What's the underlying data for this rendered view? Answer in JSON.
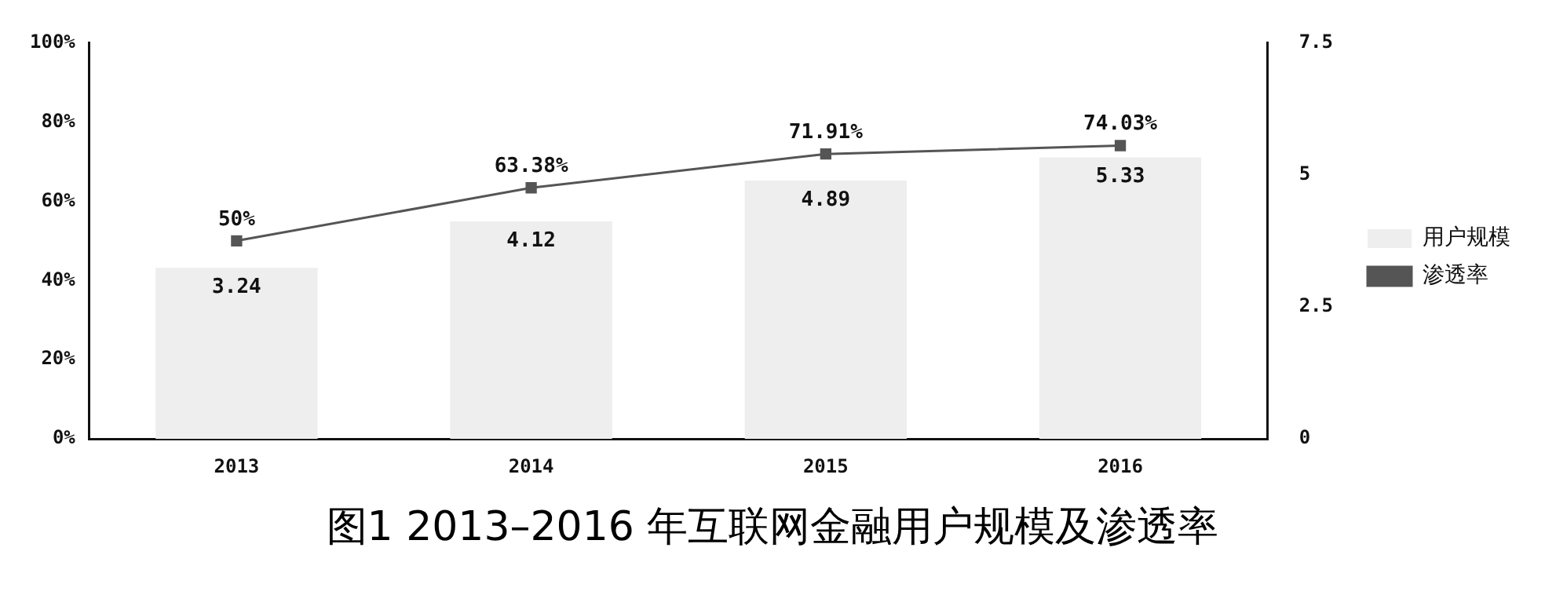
{
  "chart_data": {
    "type": "bar",
    "title": "图1 2013–2016 年互联网金融用户规模及渗透率",
    "categories": [
      "2013",
      "2014",
      "2015",
      "2016"
    ],
    "series": [
      {
        "name": "用户规模",
        "axis": "y2",
        "color": "#eeeeee",
        "values": [
          3.24,
          4.12,
          4.89,
          5.33
        ],
        "value_labels": [
          "3.24",
          "4.12",
          "4.89",
          "5.33"
        ]
      },
      {
        "name": "渗透率",
        "type": "line",
        "axis": "y",
        "color": "#555555",
        "values": [
          50,
          63.38,
          71.91,
          74.03
        ],
        "value_labels": [
          "50%",
          "63.38%",
          "71.91%",
          "74.03%"
        ]
      }
    ],
    "ylim": [
      0,
      100
    ],
    "yticks": [
      {
        "value": 0,
        "label": "0%"
      },
      {
        "value": 20,
        "label": "20%"
      },
      {
        "value": 40,
        "label": "40%"
      },
      {
        "value": 60,
        "label": "60%"
      },
      {
        "value": 80,
        "label": "80%"
      },
      {
        "value": 100,
        "label": "100%"
      }
    ],
    "y2lim": [
      0,
      7.5
    ],
    "y2ticks": [
      0,
      2.5,
      5,
      7.5
    ],
    "legend": "right",
    "grid": false,
    "marker": "square"
  }
}
